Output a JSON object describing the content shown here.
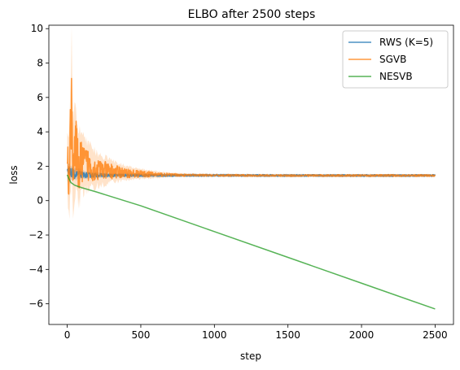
{
  "chart_data": {
    "type": "line",
    "title": "ELBO after 2500 steps",
    "xlabel": "step",
    "ylabel": "loss",
    "xlim": [
      -125,
      2625
    ],
    "ylim": [
      -7.2,
      10.2
    ],
    "xticks": [
      0,
      500,
      1000,
      1500,
      2000,
      2500
    ],
    "yticks": [
      -6,
      -4,
      -2,
      0,
      2,
      4,
      6,
      8,
      10
    ],
    "grid": false,
    "legend_position": "top-right",
    "series": [
      {
        "name": "RWS (K=5)",
        "color": "#1f77b4",
        "x": [
          0,
          10,
          20,
          30,
          50,
          75,
          100,
          150,
          200,
          300,
          500,
          1000,
          1500,
          2000,
          2500
        ],
        "y": [
          1.55,
          1.7,
          1.5,
          1.65,
          1.5,
          1.55,
          1.5,
          1.48,
          1.48,
          1.47,
          1.47,
          1.47,
          1.46,
          1.46,
          1.46
        ],
        "band_width": [
          0.5,
          0.7,
          0.6,
          0.5,
          0.4,
          0.35,
          0.3,
          0.25,
          0.2,
          0.15,
          0.12,
          0.1,
          0.1,
          0.1,
          0.1
        ]
      },
      {
        "name": "SGVB",
        "color": "#ff7f0e",
        "x": [
          0,
          10,
          20,
          30,
          40,
          60,
          80,
          100,
          150,
          200,
          300,
          400,
          500,
          600,
          700,
          800,
          1000,
          1500,
          2000,
          2500
        ],
        "y": [
          2.5,
          1.5,
          3.0,
          5.9,
          2.2,
          3.0,
          1.8,
          2.3,
          2.0,
          1.8,
          1.7,
          1.6,
          1.55,
          1.52,
          1.5,
          1.48,
          1.47,
          1.46,
          1.46,
          1.46
        ],
        "band_width": [
          2.0,
          3.0,
          4.0,
          4.5,
          3.5,
          3.0,
          2.6,
          2.2,
          1.6,
          1.2,
          0.8,
          0.5,
          0.35,
          0.25,
          0.15,
          0.12,
          0.1,
          0.1,
          0.1,
          0.1
        ]
      },
      {
        "name": "NESVB",
        "color": "#2ca02c",
        "x": [
          0,
          10,
          25,
          50,
          75,
          100,
          200,
          500,
          1000,
          1500,
          2000,
          2500
        ],
        "y": [
          1.5,
          1.3,
          1.05,
          0.9,
          0.82,
          0.75,
          0.5,
          -0.3,
          -1.8,
          -3.3,
          -4.8,
          -6.3
        ],
        "band_width": [
          0,
          0,
          0,
          0,
          0,
          0,
          0,
          0,
          0,
          0,
          0,
          0
        ]
      }
    ]
  }
}
